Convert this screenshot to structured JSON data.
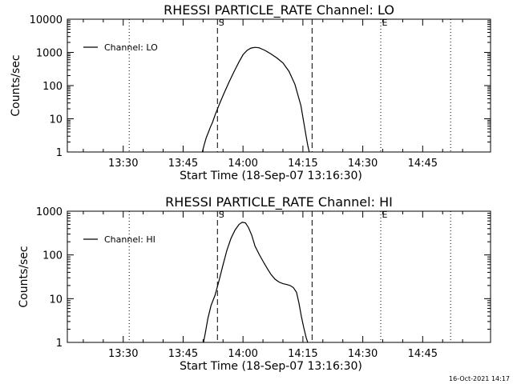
{
  "timestamp": "16-Oct-2021 14:17",
  "chart_data": [
    {
      "type": "line",
      "title": "RHESSI PARTICLE_RATE Channel: LO",
      "xlabel": "Start Time (18-Sep-07 13:16:30)",
      "ylabel": "Counts/sec",
      "x_unit": "minutes of day",
      "xlim": [
        796,
        902
      ],
      "ylim": [
        1,
        10000
      ],
      "yscale": "log",
      "x_ticks": [
        "13:30",
        "13:45",
        "14:00",
        "14:15",
        "14:30",
        "14:45"
      ],
      "x_tick_values": [
        810,
        825,
        840,
        855,
        870,
        885
      ],
      "y_ticks": [
        "1",
        "10",
        "100",
        "1000",
        "10000"
      ],
      "y_tick_values": [
        1,
        10,
        100,
        1000,
        10000
      ],
      "legend": {
        "label": "Channel: LO",
        "position": "top-left"
      },
      "markers": [
        {
          "label": "S",
          "x": 833.6,
          "style": "dashed"
        },
        {
          "label": "",
          "x": 857.3,
          "style": "dashed"
        },
        {
          "label": "E",
          "x": 874.5,
          "style": "dotted"
        }
      ],
      "verticals_dotted": [
        811.5,
        892.0
      ],
      "series": [
        {
          "name": "Channel: LO",
          "x": [
            829.8,
            830.3,
            830.8,
            831.3,
            831.8,
            832.4,
            833.0,
            834.2,
            835.4,
            836.6,
            837.8,
            839.0,
            840.0,
            841.0,
            842.0,
            843.0,
            844.0,
            845.5,
            847.0,
            848.5,
            850.0,
            851.5,
            853.0,
            854.5,
            855.2,
            855.8,
            856.2,
            856.5,
            856.6
          ],
          "y": [
            1.0,
            1.7,
            2.7,
            3.8,
            5.5,
            8.0,
            13,
            30,
            65,
            135,
            270,
            520,
            850,
            1150,
            1350,
            1420,
            1380,
            1150,
            900,
            680,
            480,
            270,
            110,
            25,
            8,
            3,
            1.6,
            1.1,
            1.0
          ]
        }
      ]
    },
    {
      "type": "line",
      "title": "RHESSI PARTICLE_RATE Channel: HI",
      "xlabel": "Start Time (18-Sep-07 13:16:30)",
      "ylabel": "Counts/sec",
      "x_unit": "minutes of day",
      "xlim": [
        796,
        902
      ],
      "ylim": [
        1,
        1000
      ],
      "yscale": "log",
      "x_ticks": [
        "13:30",
        "13:45",
        "14:00",
        "14:15",
        "14:30",
        "14:45"
      ],
      "x_tick_values": [
        810,
        825,
        840,
        855,
        870,
        885
      ],
      "y_ticks": [
        "1",
        "10",
        "100",
        "1000"
      ],
      "y_tick_values": [
        1,
        10,
        100,
        1000
      ],
      "legend": {
        "label": "Channel: HI",
        "position": "top-left"
      },
      "markers": [
        {
          "label": "S",
          "x": 833.6,
          "style": "dashed"
        },
        {
          "label": "",
          "x": 857.3,
          "style": "dashed"
        },
        {
          "label": "E",
          "x": 874.5,
          "style": "dotted"
        }
      ],
      "verticals_dotted": [
        811.5,
        892.0
      ],
      "series": [
        {
          "name": "Channel: HI",
          "x": [
            830.1,
            830.6,
            831.2,
            832.0,
            833.0,
            834.0,
            835.0,
            836.0,
            837.0,
            838.0,
            839.0,
            839.8,
            840.6,
            841.4,
            842.2,
            843.0,
            844.0,
            845.0,
            846.0,
            847.0,
            848.0,
            849.0,
            850.0,
            851.0,
            851.8,
            852.6,
            853.4,
            854.0,
            854.6,
            855.2,
            855.8,
            856.2
          ],
          "y": [
            1.0,
            1.7,
            3.5,
            7.0,
            12,
            26,
            60,
            130,
            240,
            370,
            500,
            560,
            540,
            420,
            280,
            160,
            105,
            72,
            50,
            36,
            28,
            24,
            22,
            21,
            20,
            18,
            14,
            8,
            4,
            2.2,
            1.3,
            1.0
          ]
        }
      ]
    }
  ]
}
